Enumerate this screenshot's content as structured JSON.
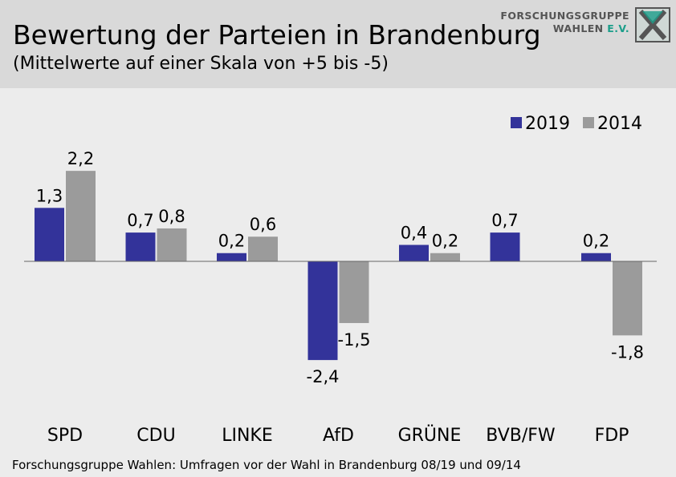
{
  "header": {
    "title": "Bewertung der Parteien in Brandenburg",
    "subtitle": "(Mittelwerte auf einer Skala von +5 bis -5)"
  },
  "logo": {
    "line1": "FORSCHUNGSGRUPPE",
    "line2": "WAHLEN",
    "line2_suffix": "E.V.",
    "icon": "x-logo-icon"
  },
  "source": "Forschungsgruppe Wahlen: Umfragen vor der Wahl in Brandenburg 08/19 und 09/14",
  "colors": {
    "series_2019": "#33339a",
    "series_2014": "#9b9b9b",
    "background": "#ececec",
    "header": "#d9d9d9"
  },
  "chart_data": {
    "type": "bar",
    "categories": [
      "SPD",
      "CDU",
      "LINKE",
      "AfD",
      "GRÜNE",
      "BVB/FW",
      "FDP"
    ],
    "series": [
      {
        "name": "2019",
        "values": [
          1.3,
          0.7,
          0.2,
          -2.4,
          0.4,
          0.7,
          0.2
        ],
        "labels": [
          "1,3",
          "0,7",
          "0,2",
          "-2,4",
          "0,4",
          "0,7",
          "0,2"
        ]
      },
      {
        "name": "2014",
        "values": [
          2.2,
          0.8,
          0.6,
          -1.5,
          0.2,
          null,
          -1.8
        ],
        "labels": [
          "2,2",
          "0,8",
          "0,6",
          "-1,5",
          "0,2",
          null,
          "-1,8"
        ]
      }
    ],
    "ylim": [
      -5,
      5
    ],
    "grid": false,
    "legend": "top-right"
  }
}
